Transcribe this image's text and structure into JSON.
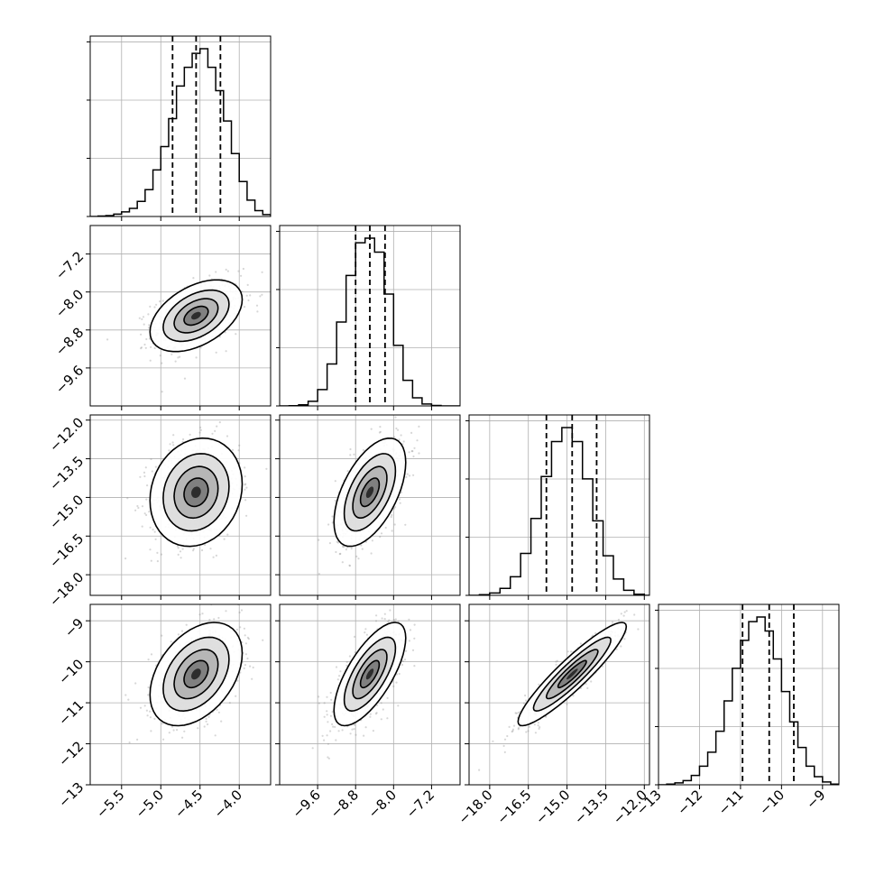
{
  "chart_data": {
    "type": "corner",
    "title": "",
    "parameters": [
      {
        "xlim": [
          -5.9,
          -3.6
        ],
        "mean": -4.55,
        "sigma": 0.28,
        "quantiles": [
          -4.85,
          -4.55,
          -4.24
        ],
        "ticks": [
          -5.5,
          -5.0,
          -4.5,
          -4.0
        ],
        "tick_labels": [
          "−5.5",
          "−5.0",
          "−4.5",
          "−4.0"
        ]
      },
      {
        "xlim": [
          -10.4,
          -6.6
        ],
        "mean": -8.5,
        "sigma": 0.36,
        "quantiles": [
          -8.8,
          -8.5,
          -8.18
        ],
        "ticks": [
          -9.6,
          -8.8,
          -8.0,
          -7.2
        ],
        "tick_labels": [
          "−9.6",
          "−8.8",
          "−8.0",
          "−7.2"
        ]
      },
      {
        "xlim": [
          -18.8,
          -11.8
        ],
        "mean": -14.8,
        "sigma": 1.0,
        "quantiles": [
          -15.8,
          -14.8,
          -13.85
        ],
        "ticks": [
          -18.0,
          -16.5,
          -15.0,
          -13.5,
          -12.0
        ],
        "tick_labels": [
          "−18.0",
          "−16.5",
          "−15.0",
          "−13.5",
          "−12.0"
        ]
      },
      {
        "xlim": [
          -13.0,
          -8.6
        ],
        "mean": -10.3,
        "sigma": 0.6,
        "quantiles": [
          -10.95,
          -10.3,
          -9.7
        ],
        "ticks": [
          -13,
          -12,
          -11,
          -10,
          -9
        ],
        "tick_labels": [
          "−13",
          "−12",
          "−11",
          "−10",
          "−9"
        ]
      }
    ],
    "correlations": [
      [
        1.0,
        0.45,
        0.15,
        0.4
      ],
      [
        0.45,
        1.0,
        0.55,
        0.7
      ],
      [
        0.15,
        0.55,
        1.0,
        0.92
      ],
      [
        0.4,
        0.7,
        0.92,
        1.0
      ]
    ],
    "histograms": [
      {
        "param": 0,
        "bins": [
          -5.9,
          -5.8,
          -5.7,
          -5.6,
          -5.5,
          -5.4,
          -5.3,
          -5.2,
          -5.1,
          -5.0,
          -4.9,
          -4.8,
          -4.7,
          -4.6,
          -4.5,
          -4.4,
          -4.3,
          -4.2,
          -4.1,
          -4.0,
          -3.9,
          -3.8,
          -3.7,
          -3.6
        ],
        "counts": [
          0,
          2,
          4,
          10,
          20,
          35,
          65,
          115,
          200,
          300,
          420,
          560,
          640,
          700,
          720,
          640,
          540,
          410,
          270,
          150,
          70,
          25,
          8
        ]
      },
      {
        "param": 1,
        "bins": [
          -10.4,
          -10.2,
          -10.0,
          -9.8,
          -9.6,
          -9.4,
          -9.2,
          -9.0,
          -8.8,
          -8.6,
          -8.4,
          -8.2,
          -8.0,
          -7.8,
          -7.6,
          -7.4,
          -7.2,
          -7.0,
          -6.8,
          -6.6
        ],
        "counts": [
          0,
          1,
          5,
          20,
          70,
          180,
          360,
          560,
          700,
          720,
          660,
          480,
          260,
          110,
          35,
          8,
          2,
          0,
          0
        ]
      },
      {
        "param": 2,
        "bins": [
          -18.8,
          -18.4,
          -18.0,
          -17.6,
          -17.2,
          -16.8,
          -16.4,
          -16.0,
          -15.6,
          -15.2,
          -14.8,
          -14.4,
          -14.0,
          -13.6,
          -13.2,
          -12.8,
          -12.4,
          -12.0,
          -11.8
        ],
        "counts": [
          0,
          3,
          10,
          30,
          80,
          180,
          330,
          510,
          660,
          720,
          660,
          500,
          320,
          170,
          70,
          22,
          5,
          0
        ]
      },
      {
        "param": 3,
        "bins": [
          -13.0,
          -12.8,
          -12.6,
          -12.4,
          -12.2,
          -12.0,
          -11.8,
          -11.6,
          -11.4,
          -11.2,
          -11.0,
          -10.8,
          -10.6,
          -10.4,
          -10.2,
          -10.0,
          -9.8,
          -9.6,
          -9.4,
          -9.2,
          -9.0,
          -8.8,
          -8.6
        ],
        "counts": [
          0,
          3,
          8,
          18,
          40,
          80,
          140,
          230,
          360,
          500,
          620,
          700,
          720,
          660,
          540,
          400,
          270,
          160,
          80,
          35,
          12,
          3
        ]
      }
    ]
  }
}
